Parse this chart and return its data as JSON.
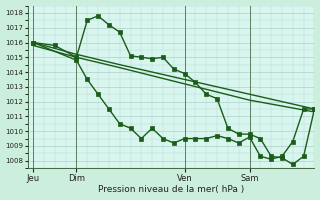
{
  "background_color": "#cceedd",
  "plot_bg_color": "#d8f5ee",
  "grid_color": "#aacccc",
  "line_color": "#1a5c1a",
  "title": "Pression niveau de la mer( hPa )",
  "ylim": [
    1007.5,
    1018.5
  ],
  "yticks": [
    1008,
    1009,
    1010,
    1011,
    1012,
    1013,
    1014,
    1015,
    1016,
    1017,
    1018
  ],
  "day_labels": [
    "Jeu",
    "Dim",
    "Ven",
    "Sam"
  ],
  "day_positions": [
    0,
    4,
    14,
    20
  ],
  "vline_positions": [
    0,
    4,
    14,
    20
  ],
  "xlim": [
    -0.5,
    26
  ],
  "smooth_line1": {
    "x": [
      0,
      4,
      8,
      14,
      20,
      26
    ],
    "y": [
      1016.0,
      1015.2,
      1014.5,
      1013.5,
      1012.5,
      1011.5
    ]
  },
  "smooth_line2": {
    "x": [
      0,
      4,
      8,
      14,
      20,
      26
    ],
    "y": [
      1015.8,
      1015.0,
      1014.3,
      1013.2,
      1012.1,
      1011.3
    ]
  },
  "jagged_line": {
    "x": [
      0,
      2,
      4,
      5,
      6,
      7,
      8,
      9,
      10,
      11,
      12,
      13,
      14,
      15,
      16,
      17,
      18,
      19,
      20,
      21,
      22,
      23,
      24,
      25,
      26
    ],
    "y": [
      1016.0,
      1015.8,
      1015.0,
      1017.5,
      1017.8,
      1017.2,
      1016.7,
      1015.1,
      1015.0,
      1014.9,
      1015.0,
      1014.2,
      1013.9,
      1013.3,
      1012.5,
      1012.2,
      1010.2,
      1009.8,
      1009.8,
      1009.5,
      1008.3,
      1008.2,
      1007.75,
      1008.3,
      1011.5
    ]
  },
  "bottom_line": {
    "x": [
      0,
      4,
      5,
      6,
      7,
      8,
      9,
      10,
      11,
      12,
      13,
      14,
      15,
      16,
      17,
      18,
      19,
      20,
      21,
      22,
      23,
      24,
      25,
      26
    ],
    "y": [
      1016.0,
      1014.8,
      1013.5,
      1012.5,
      1011.5,
      1010.5,
      1010.2,
      1009.5,
      1010.2,
      1009.5,
      1009.2,
      1009.5,
      1009.5,
      1009.5,
      1009.7,
      1009.5,
      1009.2,
      1009.6,
      1008.3,
      1008.1,
      1008.3,
      1009.3,
      1011.5,
      1011.5
    ]
  }
}
